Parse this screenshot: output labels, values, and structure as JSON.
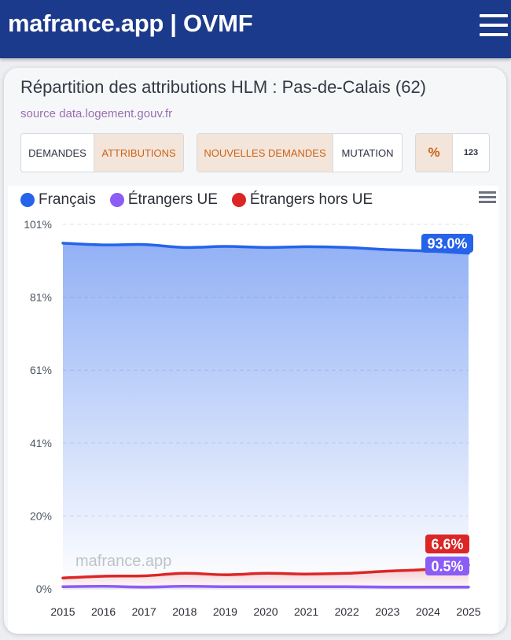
{
  "header": {
    "brand": "mafrance.app | OVMF",
    "menu_icon": "hamburger-menu-icon"
  },
  "card": {
    "title": "Répartition des attributions HLM : Pas-de-Calais (62)",
    "source": "source data.logement.gouv.fr"
  },
  "controls": {
    "type_group": [
      {
        "label": "DEMANDES",
        "active": false
      },
      {
        "label": "ATTRIBUTIONS",
        "active": true
      }
    ],
    "subtype_group": [
      {
        "label": "NOUVELLES DEMANDES",
        "active": true
      },
      {
        "label": "MUTATION",
        "active": false
      }
    ],
    "unit_group": [
      {
        "label": "%",
        "active": true
      },
      {
        "label": "123",
        "active": false
      }
    ]
  },
  "chart_menu_icon": "chart-menu-icon",
  "watermark": "mafrance.app",
  "colors": {
    "francais": "#2563eb",
    "etrangers_ue": "#8b5cf6",
    "etrangers_hors_ue": "#dc2626",
    "active_button_bg": "#f4e5da",
    "active_button_text": "#c8641a"
  },
  "chart_data": {
    "type": "area",
    "title": "Répartition des attributions HLM : Pas-de-Calais (62)",
    "x": [
      2015,
      2016,
      2017,
      2018,
      2019,
      2020,
      2021,
      2022,
      2023,
      2024,
      2025
    ],
    "ylim": [
      0,
      101
    ],
    "y_ticks": [
      "0%",
      "20%",
      "41%",
      "61%",
      "81%",
      "101%"
    ],
    "y_tick_values": [
      0,
      20.2,
      40.4,
      60.6,
      80.8,
      101
    ],
    "grid": true,
    "legend_position": "top-left",
    "series": [
      {
        "name": "Français",
        "color": "#2563eb",
        "values": [
          95.8,
          95.3,
          95.4,
          94.6,
          94.9,
          94.6,
          94.8,
          94.6,
          94.0,
          93.6,
          93.0
        ],
        "end_label": "93.0%"
      },
      {
        "name": "Étrangers UE",
        "color": "#8b5cf6",
        "values": [
          0.6,
          0.7,
          0.5,
          0.7,
          0.6,
          0.6,
          0.6,
          0.6,
          0.5,
          0.5,
          0.5
        ],
        "end_label": "0.5%"
      },
      {
        "name": "Étrangers hors UE",
        "color": "#dc2626",
        "values": [
          3.0,
          3.5,
          3.6,
          4.3,
          3.9,
          4.3,
          4.1,
          4.3,
          4.9,
          5.4,
          6.6
        ],
        "end_label": "6.6%"
      }
    ]
  }
}
